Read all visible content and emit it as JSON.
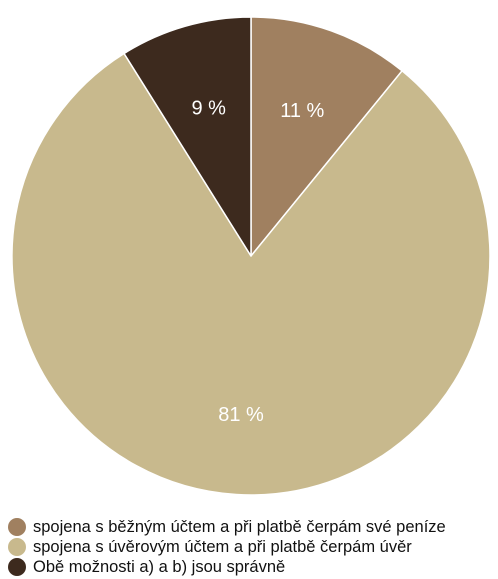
{
  "chart_data": {
    "type": "pie",
    "title": "",
    "slices": [
      {
        "label": "spojena s běžným účtem a při platbě čerpám své peníze",
        "value": 11,
        "value_label": "11 %",
        "color": "#a08060"
      },
      {
        "label": "spojena s úvěrovým účtem a při platbě čerpám úvěr",
        "value": 81,
        "value_label": "81 %",
        "color": "#c8b98d"
      },
      {
        "label": "Obě možnosti a) a b) jsou správně",
        "value": 9,
        "value_label": "9 %",
        "color": "#3d2a1e"
      }
    ],
    "start_angle": "12 o'clock",
    "direction": "clockwise",
    "data_label_color": "#ffffff",
    "legend_position": "bottom-left"
  }
}
